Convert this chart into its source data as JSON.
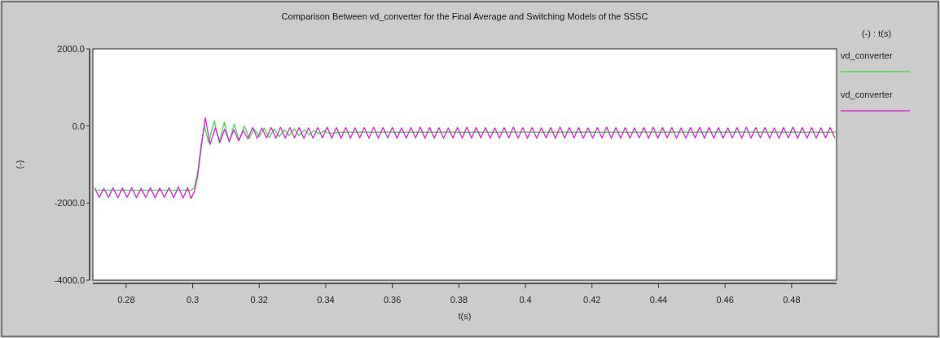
{
  "chart_data": {
    "type": "line",
    "title": "Comparison Between vd_converter for the Final Average and Switching Models of the SSSC",
    "xlabel": "t(s)",
    "ylabel": "(-)",
    "legend_title": "(-) : t(s)",
    "legend": "right",
    "grid": false,
    "line_style": "solid",
    "marker": "none",
    "xlim": [
      0.27,
      0.4935
    ],
    "xticks": [
      0.28,
      0.3,
      0.32,
      0.34,
      0.36,
      0.38,
      0.4,
      0.42,
      0.44,
      0.46,
      0.48
    ],
    "ylim": [
      -4000,
      2000
    ],
    "yticks": [
      {
        "value": -4000,
        "label": "-4000.0"
      },
      {
        "value": -2000,
        "label": "-2000.0"
      },
      {
        "value": 0,
        "label": "0.0"
      },
      {
        "value": 2000,
        "label": "2000.0"
      }
    ],
    "series": [
      {
        "name": "vd_converter",
        "color": "#44dd44",
        "x": [
          0.2705,
          0.2995,
          0.3005,
          0.3015,
          0.3025,
          0.3035,
          0.3048,
          0.3065,
          0.308,
          0.3095,
          0.311,
          0.3125,
          0.314,
          0.3155,
          0.317,
          0.3185,
          0.32,
          0.3215,
          0.323,
          0.3245,
          0.326,
          0.3275,
          0.329,
          0.3305,
          0.332,
          0.3335,
          0.335,
          0.3365,
          0.338,
          0.3395,
          0.341,
          0.345,
          0.4935
        ],
        "values": [
          -1670,
          -1670,
          -1600,
          -1200,
          -500,
          0,
          -430,
          130,
          -450,
          100,
          -420,
          50,
          -380,
          0,
          -320,
          -80,
          -280,
          -60,
          -300,
          -80,
          -280,
          -100,
          -250,
          -80,
          -250,
          -100,
          -230,
          -120,
          -200,
          -130,
          -190,
          -160,
          -160
        ]
      },
      {
        "name": "vd_converter",
        "color": "#dd22dd",
        "x": [
          0.2705,
          0.2719,
          0.2733,
          0.2747,
          0.2761,
          0.2775,
          0.2789,
          0.2803,
          0.2817,
          0.2831,
          0.2845,
          0.2859,
          0.2873,
          0.2887,
          0.2901,
          0.2915,
          0.2929,
          0.2943,
          0.2957,
          0.2971,
          0.2985,
          0.2995,
          0.3005,
          0.3015,
          0.3025,
          0.3038,
          0.3052,
          0.3068,
          0.3082,
          0.3096,
          0.311,
          0.3124,
          0.3138,
          0.3152,
          0.3166,
          0.318,
          0.3194,
          0.3208,
          0.3222,
          0.3236,
          0.325,
          0.3264,
          0.3278,
          0.3292,
          0.3306,
          0.332,
          0.3334,
          0.3348,
          0.3362,
          0.3376,
          0.339,
          0.3404,
          0.3418,
          0.3432,
          0.3446,
          0.346,
          0.3474,
          0.3488,
          0.3502,
          0.3516,
          0.353,
          0.3544,
          0.3558,
          0.3572,
          0.3586,
          0.36,
          0.3614,
          0.3628,
          0.3642,
          0.3656,
          0.367,
          0.3684,
          0.3698,
          0.3712,
          0.3726,
          0.374,
          0.3754,
          0.3768,
          0.3782,
          0.3796,
          0.381,
          0.3824,
          0.3838,
          0.3852,
          0.3866,
          0.388,
          0.3894,
          0.3908,
          0.3922,
          0.3936,
          0.395,
          0.3964,
          0.3978,
          0.3992,
          0.4006,
          0.402,
          0.4034,
          0.4048,
          0.4062,
          0.4076,
          0.409,
          0.4104,
          0.4118,
          0.4132,
          0.4146,
          0.416,
          0.4174,
          0.4188,
          0.4202,
          0.4216,
          0.423,
          0.4244,
          0.4258,
          0.4272,
          0.4286,
          0.43,
          0.4314,
          0.4328,
          0.4342,
          0.4356,
          0.437,
          0.4384,
          0.4398,
          0.4412,
          0.4426,
          0.444,
          0.4454,
          0.4468,
          0.4482,
          0.4496,
          0.451,
          0.4524,
          0.4538,
          0.4552,
          0.4566,
          0.458,
          0.4594,
          0.4608,
          0.4622,
          0.4636,
          0.465,
          0.4664,
          0.4678,
          0.4692,
          0.4706,
          0.472,
          0.4734,
          0.4748,
          0.4762,
          0.4776,
          0.479,
          0.4804,
          0.4818,
          0.4832,
          0.4846,
          0.486,
          0.4874,
          0.4888,
          0.4902,
          0.4916,
          0.493
        ],
        "values": [
          -1600,
          -1850,
          -1620,
          -1850,
          -1600,
          -1860,
          -1610,
          -1850,
          -1600,
          -1860,
          -1620,
          -1850,
          -1600,
          -1860,
          -1610,
          -1850,
          -1600,
          -1860,
          -1580,
          -1870,
          -1600,
          -1880,
          -1700,
          -1300,
          -600,
          210,
          -480,
          -50,
          -420,
          -80,
          -400,
          -100,
          -380,
          -120,
          -330,
          -40,
          -320,
          -50,
          -310,
          -40,
          -320,
          -30,
          -320,
          -40,
          -310,
          -40,
          -320,
          -50,
          -320,
          -40,
          -310,
          -30,
          -320,
          -40,
          -320,
          -40,
          -320,
          -50,
          -310,
          -40,
          -320,
          -30,
          -320,
          -40,
          -310,
          -40,
          -320,
          -50,
          -320,
          -40,
          -310,
          -30,
          -320,
          -40,
          -320,
          -40,
          -320,
          -50,
          -310,
          -40,
          -320,
          -30,
          -320,
          -40,
          -310,
          -40,
          -320,
          -50,
          -320,
          -40,
          -310,
          -30,
          -320,
          -40,
          -320,
          -40,
          -320,
          -50,
          -310,
          -40,
          -320,
          -30,
          -320,
          -40,
          -310,
          -40,
          -320,
          -50,
          -320,
          -40,
          -310,
          -30,
          -320,
          -40,
          -320,
          -40,
          -320,
          -50,
          -310,
          -40,
          -320,
          -30,
          -320,
          -40,
          -310,
          -40,
          -320,
          -50,
          -320,
          -40,
          -310,
          -30,
          -320,
          -40,
          -320,
          -40,
          -320,
          -50,
          -310,
          -40,
          -320,
          -30,
          -320,
          -40,
          -310,
          -40,
          -320,
          -50,
          -320,
          -40,
          -310,
          -30,
          -320,
          -40,
          -320,
          -40,
          -320,
          -50,
          -310,
          -40,
          -320
        ]
      }
    ]
  }
}
